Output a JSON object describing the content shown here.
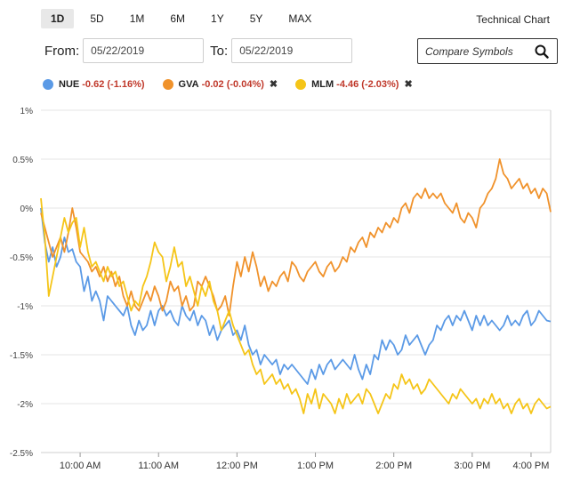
{
  "range_buttons": [
    {
      "label": "1D",
      "active": true
    },
    {
      "label": "5D",
      "active": false
    },
    {
      "label": "1M",
      "active": false
    },
    {
      "label": "6M",
      "active": false
    },
    {
      "label": "1Y",
      "active": false
    },
    {
      "label": "5Y",
      "active": false
    },
    {
      "label": "MAX",
      "active": false
    }
  ],
  "technical_chart_label": "Technical Chart",
  "date_range": {
    "from_label": "From:",
    "from_value": "05/22/2019",
    "to_label": "To:",
    "to_value": "05/22/2019"
  },
  "compare": {
    "placeholder": "Compare Symbols",
    "icon": "search-icon"
  },
  "legend": [
    {
      "symbol": "NUE",
      "change": "-0.62 (-1.16%)",
      "color": "#5b9ae6",
      "removable": false
    },
    {
      "symbol": "GVA",
      "change": "-0.02 (-0.04%)",
      "color": "#f0922b",
      "removable": true
    },
    {
      "symbol": "MLM",
      "change": "-4.46 (-2.03%)",
      "color": "#f5c518",
      "removable": true
    }
  ],
  "close_glyph": "✖",
  "chart_data": {
    "type": "line",
    "ylim": [
      -2.5,
      1.0
    ],
    "y_ticks": [
      {
        "value": 1.0,
        "label": "1%"
      },
      {
        "value": 0.5,
        "label": "0.5%"
      },
      {
        "value": 0.0,
        "label": "0%"
      },
      {
        "value": -0.5,
        "label": "-0.5%"
      },
      {
        "value": -1.0,
        "label": "-1%"
      },
      {
        "value": -1.5,
        "label": "-1.5%"
      },
      {
        "value": -2.0,
        "label": "-2%"
      },
      {
        "value": -2.5,
        "label": "-2.5%"
      }
    ],
    "x_unit": "minutes since 9:30 AM",
    "xlim": [
      0,
      390
    ],
    "x_ticks": [
      {
        "value": 30,
        "label": "10:00 AM"
      },
      {
        "value": 90,
        "label": "11:00 AM"
      },
      {
        "value": 150,
        "label": "12:00 PM"
      },
      {
        "value": 210,
        "label": "1:00 PM"
      },
      {
        "value": 270,
        "label": "2:00 PM"
      },
      {
        "value": 330,
        "label": "3:00 PM"
      },
      {
        "value": 375,
        "label": "4:00 PM"
      }
    ],
    "grid": "horizontal",
    "legend_position": "top-left",
    "series": [
      {
        "name": "NUE",
        "color": "#5b9ae6",
        "x": [
          0,
          3,
          6,
          9,
          12,
          15,
          18,
          21,
          24,
          27,
          30,
          33,
          36,
          39,
          42,
          45,
          48,
          51,
          54,
          57,
          60,
          63,
          66,
          69,
          72,
          75,
          78,
          81,
          84,
          87,
          90,
          93,
          96,
          99,
          102,
          105,
          108,
          111,
          114,
          117,
          120,
          123,
          126,
          129,
          132,
          135,
          138,
          141,
          144,
          147,
          150,
          153,
          156,
          159,
          162,
          165,
          168,
          171,
          174,
          177,
          180,
          183,
          186,
          189,
          192,
          195,
          198,
          201,
          204,
          207,
          210,
          213,
          216,
          219,
          222,
          225,
          228,
          231,
          234,
          237,
          240,
          243,
          246,
          249,
          252,
          255,
          258,
          261,
          264,
          267,
          270,
          273,
          276,
          279,
          282,
          285,
          288,
          291,
          294,
          297,
          300,
          303,
          306,
          309,
          312,
          315,
          318,
          321,
          324,
          327,
          330,
          333,
          336,
          339,
          342,
          345,
          348,
          351,
          354,
          357,
          360,
          363,
          366,
          369,
          372,
          375,
          378,
          381,
          384,
          387,
          390
        ],
        "values": [
          0.0,
          -0.35,
          -0.55,
          -0.4,
          -0.6,
          -0.5,
          -0.3,
          -0.45,
          -0.42,
          -0.55,
          -0.6,
          -0.85,
          -0.7,
          -0.95,
          -0.85,
          -0.95,
          -1.15,
          -0.9,
          -0.95,
          -1.0,
          -1.05,
          -1.1,
          -1.0,
          -1.2,
          -1.3,
          -1.15,
          -1.25,
          -1.2,
          -1.05,
          -1.2,
          -1.05,
          -1.0,
          -1.1,
          -1.05,
          -1.15,
          -1.2,
          -1.0,
          -1.1,
          -1.15,
          -1.05,
          -1.2,
          -1.1,
          -1.15,
          -1.3,
          -1.2,
          -1.35,
          -1.25,
          -1.2,
          -1.15,
          -1.3,
          -1.25,
          -1.35,
          -1.2,
          -1.4,
          -1.5,
          -1.45,
          -1.6,
          -1.5,
          -1.55,
          -1.6,
          -1.55,
          -1.7,
          -1.6,
          -1.65,
          -1.6,
          -1.65,
          -1.7,
          -1.75,
          -1.8,
          -1.65,
          -1.75,
          -1.6,
          -1.7,
          -1.6,
          -1.55,
          -1.65,
          -1.6,
          -1.55,
          -1.6,
          -1.65,
          -1.5,
          -1.65,
          -1.75,
          -1.6,
          -1.7,
          -1.5,
          -1.55,
          -1.35,
          -1.45,
          -1.35,
          -1.4,
          -1.5,
          -1.45,
          -1.3,
          -1.4,
          -1.35,
          -1.3,
          -1.4,
          -1.5,
          -1.4,
          -1.35,
          -1.2,
          -1.25,
          -1.15,
          -1.1,
          -1.2,
          -1.1,
          -1.15,
          -1.05,
          -1.15,
          -1.25,
          -1.1,
          -1.2,
          -1.1,
          -1.2,
          -1.15,
          -1.2,
          -1.25,
          -1.2,
          -1.1,
          -1.2,
          -1.15,
          -1.2,
          -1.1,
          -1.05,
          -1.2,
          -1.15,
          -1.05,
          -1.1,
          -1.15,
          -1.16
        ]
      },
      {
        "name": "GVA",
        "color": "#f0922b",
        "x": [
          0,
          3,
          6,
          9,
          12,
          15,
          18,
          21,
          24,
          27,
          30,
          33,
          36,
          39,
          42,
          45,
          48,
          51,
          54,
          57,
          60,
          63,
          66,
          69,
          72,
          75,
          78,
          81,
          84,
          87,
          90,
          93,
          96,
          99,
          102,
          105,
          108,
          111,
          114,
          117,
          120,
          123,
          126,
          129,
          132,
          135,
          138,
          141,
          144,
          147,
          150,
          153,
          156,
          159,
          162,
          165,
          168,
          171,
          174,
          177,
          180,
          183,
          186,
          189,
          192,
          195,
          198,
          201,
          204,
          207,
          210,
          213,
          216,
          219,
          222,
          225,
          228,
          231,
          234,
          237,
          240,
          243,
          246,
          249,
          252,
          255,
          258,
          261,
          264,
          267,
          270,
          273,
          276,
          279,
          282,
          285,
          288,
          291,
          294,
          297,
          300,
          303,
          306,
          309,
          312,
          315,
          318,
          321,
          324,
          327,
          330,
          333,
          336,
          339,
          342,
          345,
          348,
          351,
          354,
          357,
          360,
          363,
          366,
          369,
          372,
          375,
          378,
          381,
          384,
          387,
          390
        ],
        "values": [
          -0.05,
          -0.2,
          -0.35,
          -0.5,
          -0.4,
          -0.3,
          -0.45,
          -0.25,
          0.0,
          -0.2,
          -0.45,
          -0.5,
          -0.55,
          -0.65,
          -0.6,
          -0.7,
          -0.6,
          -0.75,
          -0.65,
          -0.8,
          -0.7,
          -0.9,
          -1.0,
          -0.85,
          -1.0,
          -1.05,
          -0.95,
          -0.85,
          -0.95,
          -0.8,
          -0.9,
          -1.05,
          -0.95,
          -0.75,
          -0.85,
          -0.8,
          -1.0,
          -0.9,
          -1.05,
          -1.0,
          -0.75,
          -0.8,
          -0.7,
          -0.8,
          -0.9,
          -1.05,
          -1.0,
          -0.9,
          -1.1,
          -0.8,
          -0.55,
          -0.7,
          -0.5,
          -0.65,
          -0.45,
          -0.6,
          -0.8,
          -0.7,
          -0.85,
          -0.75,
          -0.8,
          -0.7,
          -0.65,
          -0.75,
          -0.55,
          -0.6,
          -0.7,
          -0.75,
          -0.65,
          -0.6,
          -0.55,
          -0.65,
          -0.7,
          -0.6,
          -0.55,
          -0.65,
          -0.6,
          -0.5,
          -0.55,
          -0.4,
          -0.45,
          -0.35,
          -0.3,
          -0.4,
          -0.25,
          -0.3,
          -0.2,
          -0.25,
          -0.15,
          -0.2,
          -0.1,
          -0.15,
          0.0,
          0.05,
          -0.05,
          0.1,
          0.15,
          0.1,
          0.2,
          0.1,
          0.15,
          0.1,
          0.15,
          0.05,
          0.0,
          -0.05,
          0.05,
          -0.1,
          -0.15,
          -0.05,
          -0.1,
          -0.2,
          0.0,
          0.05,
          0.15,
          0.2,
          0.3,
          0.5,
          0.35,
          0.3,
          0.2,
          0.25,
          0.3,
          0.2,
          0.25,
          0.15,
          0.2,
          0.1,
          0.2,
          0.15,
          -0.04
        ]
      },
      {
        "name": "MLM",
        "color": "#f5c518",
        "x": [
          0,
          3,
          6,
          9,
          12,
          15,
          18,
          21,
          24,
          27,
          30,
          33,
          36,
          39,
          42,
          45,
          48,
          51,
          54,
          57,
          60,
          63,
          66,
          69,
          72,
          75,
          78,
          81,
          84,
          87,
          90,
          93,
          96,
          99,
          102,
          105,
          108,
          111,
          114,
          117,
          120,
          123,
          126,
          129,
          132,
          135,
          138,
          141,
          144,
          147,
          150,
          153,
          156,
          159,
          162,
          165,
          168,
          171,
          174,
          177,
          180,
          183,
          186,
          189,
          192,
          195,
          198,
          201,
          204,
          207,
          210,
          213,
          216,
          219,
          222,
          225,
          228,
          231,
          234,
          237,
          240,
          243,
          246,
          249,
          252,
          255,
          258,
          261,
          264,
          267,
          270,
          273,
          276,
          279,
          282,
          285,
          288,
          291,
          294,
          297,
          300,
          303,
          306,
          309,
          312,
          315,
          318,
          321,
          324,
          327,
          330,
          333,
          336,
          339,
          342,
          345,
          348,
          351,
          354,
          357,
          360,
          363,
          366,
          369,
          372,
          375,
          378,
          381,
          384,
          387,
          390
        ],
        "values": [
          0.1,
          -0.3,
          -0.9,
          -0.7,
          -0.5,
          -0.3,
          -0.1,
          -0.25,
          -0.15,
          -0.1,
          -0.4,
          -0.2,
          -0.45,
          -0.6,
          -0.55,
          -0.65,
          -0.75,
          -0.6,
          -0.7,
          -0.65,
          -0.8,
          -0.75,
          -0.9,
          -1.05,
          -0.95,
          -1.0,
          -0.8,
          -0.7,
          -0.55,
          -0.35,
          -0.45,
          -0.5,
          -0.75,
          -0.6,
          -0.4,
          -0.6,
          -0.55,
          -0.8,
          -0.7,
          -0.85,
          -1.0,
          -0.8,
          -0.9,
          -0.75,
          -0.95,
          -1.05,
          -1.25,
          -1.15,
          -1.05,
          -1.2,
          -1.3,
          -1.4,
          -1.5,
          -1.45,
          -1.6,
          -1.7,
          -1.65,
          -1.8,
          -1.75,
          -1.7,
          -1.8,
          -1.75,
          -1.85,
          -1.8,
          -1.9,
          -1.85,
          -1.95,
          -2.1,
          -1.9,
          -2.0,
          -1.85,
          -2.05,
          -1.9,
          -1.95,
          -2.0,
          -2.1,
          -1.95,
          -2.05,
          -1.9,
          -2.0,
          -1.95,
          -1.9,
          -2.0,
          -1.85,
          -1.9,
          -2.0,
          -2.1,
          -2.0,
          -1.9,
          -1.95,
          -1.8,
          -1.85,
          -1.7,
          -1.8,
          -1.75,
          -1.85,
          -1.8,
          -1.9,
          -1.85,
          -1.75,
          -1.8,
          -1.85,
          -1.9,
          -1.95,
          -2.0,
          -1.9,
          -1.95,
          -1.85,
          -1.9,
          -1.95,
          -2.0,
          -1.95,
          -2.05,
          -1.95,
          -2.0,
          -1.9,
          -2.0,
          -1.95,
          -2.05,
          -2.0,
          -2.1,
          -2.0,
          -1.95,
          -2.05,
          -2.0,
          -2.1,
          -2.0,
          -1.95,
          -2.0,
          -2.05,
          -2.03
        ]
      }
    ]
  }
}
